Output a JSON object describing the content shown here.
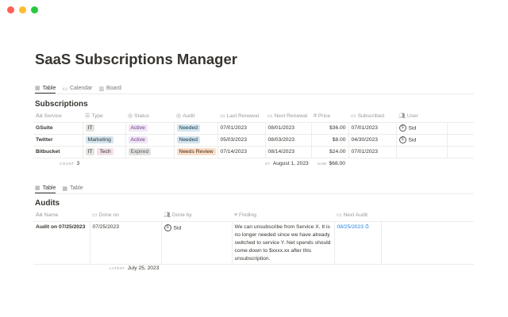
{
  "window_controls": {
    "close_color": "#ff5f57",
    "minimize_color": "#febc2e",
    "maximize_color": "#28c840"
  },
  "title": "SaaS Subscriptions Manager",
  "subscriptions": {
    "views": [
      {
        "label": "Table",
        "icon": "table-icon"
      },
      {
        "label": "Calendar",
        "icon": "calendar-icon"
      },
      {
        "label": "Board",
        "icon": "board-icon"
      }
    ],
    "title": "Subscriptions",
    "columns": [
      "Service",
      "Type",
      "Status",
      "Audit",
      "Last Renewal",
      "Next Renewal",
      "Price",
      "Subscribed",
      "User"
    ],
    "rows": [
      {
        "service": "GSuite",
        "type": [
          "IT"
        ],
        "status": "Active",
        "audit": "Needed",
        "last_renewal": "07/01/2023",
        "next_renewal": "08/01/2023",
        "price": "$36.00",
        "subscribed": "07/01/2023",
        "user": "Sid",
        "user_initial": "S"
      },
      {
        "service": "Twitter",
        "type": [
          "Marketing"
        ],
        "status": "Active",
        "audit": "Needed",
        "last_renewal": "05/03/2023",
        "next_renewal": "08/03/2023",
        "price": "$8.00",
        "subscribed": "04/30/2023",
        "user": "Sid",
        "user_initial": "S"
      },
      {
        "service": "Bitbucket",
        "type": [
          "IT",
          "Tech"
        ],
        "status": "Expired",
        "audit": "Needs Review",
        "last_renewal": "07/14/2023",
        "next_renewal": "08/14/2023",
        "price": "$24.00",
        "subscribed": "07/01/2023",
        "user": "",
        "user_initial": ""
      }
    ],
    "footer": {
      "count_label": "COUNT",
      "count": "3",
      "earliest_label": "ST",
      "earliest": "August 1, 2023",
      "sum_label": "SUM",
      "sum": "$68.00"
    }
  },
  "audits": {
    "views": [
      {
        "label": "Table",
        "icon": "table-icon"
      },
      {
        "label": "Table",
        "icon": "table-icon"
      }
    ],
    "title": "Audits",
    "columns": [
      "Name",
      "Done on",
      "Done by",
      "Finding",
      "Next Audit"
    ],
    "rows": [
      {
        "name": "Audit on 07/25/2023",
        "done_on": "07/25/2023",
        "done_by": "Sid",
        "done_by_initial": "S",
        "finding": "We can unsubscribe from Service X. It is no longer needed since we have already switched to service Y. Net spends should come down to $xxxx.xx after this unsubscription.",
        "next_audit": "08/25/2023"
      }
    ],
    "footer": {
      "latest_label": "LATEST",
      "latest": "July 25, 2023"
    }
  }
}
